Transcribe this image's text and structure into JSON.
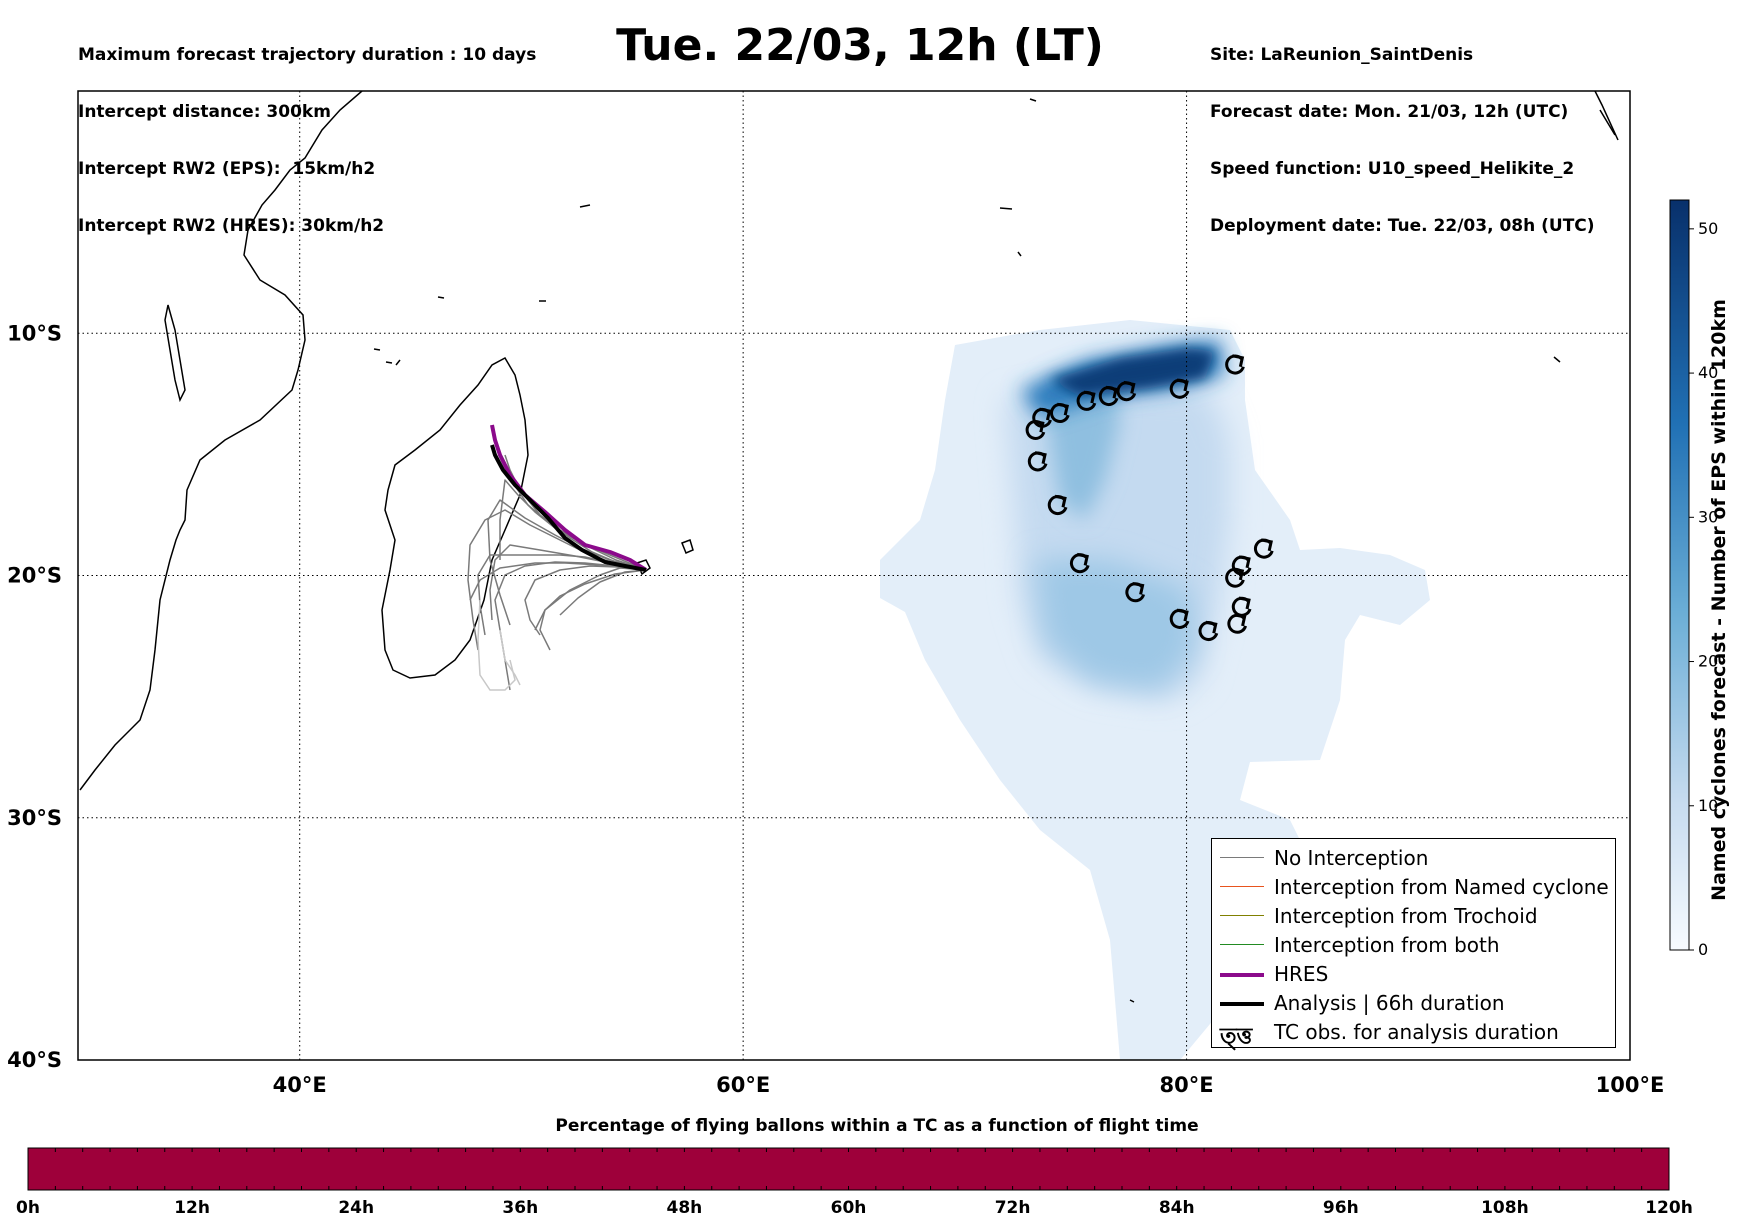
{
  "header": {
    "left_lines": [
      "Maximum forecast trajectory duration : 10 days",
      "Intercept distance: 300km",
      "Intercept RW2 (EPS):  15km/h2",
      "Intercept RW2 (HRES): 30km/h2"
    ],
    "title": "Tue. 22/03, 12h (LT)",
    "right_lines": [
      "Site: LaReunion_SaintDenis",
      "Forecast date: Mon. 21/03, 12h (UTC)",
      "Speed function: U10_speed_Helikite_2",
      "Deployment date: Tue. 22/03, 08h (UTC)"
    ]
  },
  "map": {
    "lon_range": [
      30,
      100
    ],
    "lat_range": [
      -40,
      0
    ],
    "lat_ticks": [
      {
        "value": -10,
        "label": "10°S"
      },
      {
        "value": -20,
        "label": "20°S"
      },
      {
        "value": -30,
        "label": "30°S"
      },
      {
        "value": -40,
        "label": "40°S"
      }
    ],
    "lon_ticks": [
      {
        "value": 40,
        "label": "40°E"
      },
      {
        "value": 60,
        "label": "60°E"
      },
      {
        "value": 80,
        "label": "80°E"
      },
      {
        "value": 100,
        "label": "100°E"
      }
    ],
    "grid": "dotted",
    "colors": {
      "hres": "#8b0a8b",
      "analysis": "#000000",
      "no_interception": "#7a7a7a",
      "named_cyclone": "#e8541e",
      "trochoid": "#808000",
      "both": "#228b22",
      "density_light": "#e3eef9",
      "density_dark": "#08306b"
    },
    "tc_obs": [
      [
        82.2,
        -11.3
      ],
      [
        79.7,
        -12.3
      ],
      [
        77.3,
        -12.4
      ],
      [
        76.5,
        -12.6
      ],
      [
        75.5,
        -12.8
      ],
      [
        74.3,
        -13.3
      ],
      [
        73.5,
        -13.5
      ],
      [
        73.2,
        -14.0
      ],
      [
        73.3,
        -15.3
      ],
      [
        74.2,
        -17.1
      ],
      [
        75.2,
        -19.5
      ],
      [
        77.7,
        -20.7
      ],
      [
        79.7,
        -21.8
      ],
      [
        81.0,
        -22.3
      ],
      [
        82.3,
        -22.0
      ],
      [
        82.5,
        -21.3
      ],
      [
        82.2,
        -20.1
      ],
      [
        82.5,
        -19.6
      ],
      [
        83.5,
        -18.9
      ]
    ]
  },
  "legend": {
    "items": [
      {
        "label": "No Interception",
        "color": "#7a7a7a",
        "width": 1.5
      },
      {
        "label": "Interception from Named cyclone",
        "color": "#e8541e",
        "width": 1.5
      },
      {
        "label": "Interception from Trochoid",
        "color": "#808000",
        "width": 1.5
      },
      {
        "label": "Interception from both",
        "color": "#228b22",
        "width": 1.5
      },
      {
        "label": "HRES",
        "color": "#8b0a8b",
        "width": 4
      },
      {
        "label": "Analysis | 66h duration",
        "color": "#000000",
        "width": 4
      }
    ],
    "tc_label": "TC obs. for analysis duration",
    "tc_glyph": "ত্ত্ত"
  },
  "vertical_colorbar": {
    "label": "Named cyclones forecast - Number of EPS within 120km",
    "min": 0,
    "max": 52,
    "ticks": [
      0,
      10,
      20,
      30,
      40,
      50
    ]
  },
  "horizontal_colorbar": {
    "title": "Percentage of flying ballons within a TC as a function of flight time",
    "color": "#9e003a",
    "ticks": [
      "0h",
      "12h",
      "24h",
      "36h",
      "48h",
      "60h",
      "72h",
      "84h",
      "96h",
      "108h",
      "120h"
    ]
  }
}
